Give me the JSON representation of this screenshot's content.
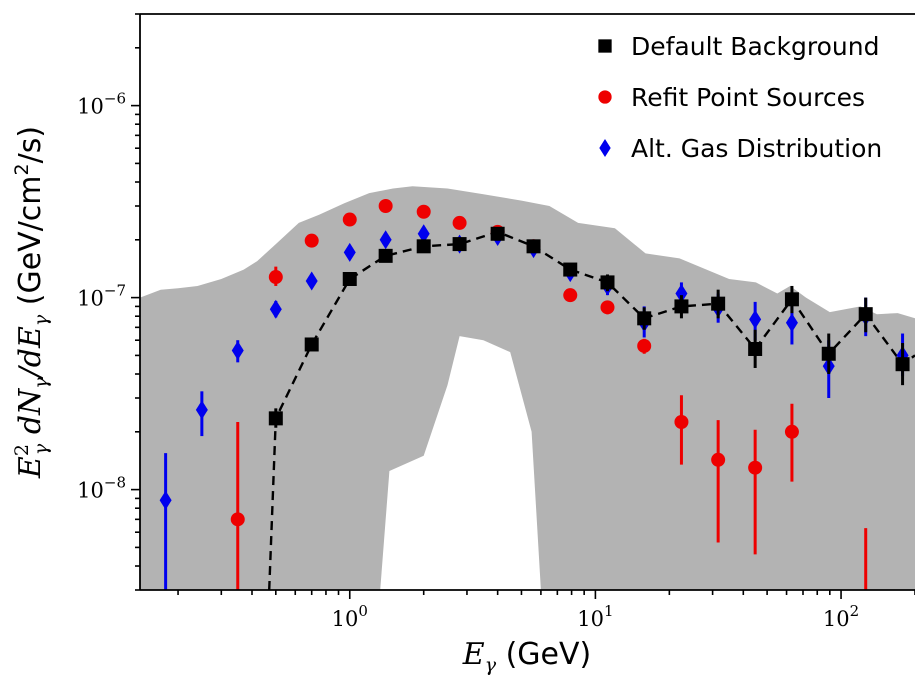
{
  "chart_data": {
    "type": "scatter",
    "xscale": "log",
    "yscale": "log",
    "xlim": [
      0.14,
      200
    ],
    "ylim": [
      3e-09,
      3e-06
    ],
    "xlabel": {
      "pre": "E",
      "sub": "γ",
      "post": " (GeV)"
    },
    "ylabel": {
      "lead": "E",
      "lead_sup": "2",
      "lead_sub": "γ",
      "mid": " dN",
      "mid_sub": "γ",
      "tail": "/dE",
      "tail_sub": "γ",
      "units_pre": " (GeV/cm",
      "units_sup": "2",
      "units_post": "/s)"
    },
    "x_ticks": [
      {
        "value": 1,
        "base": "10",
        "exp": "0"
      },
      {
        "value": 10,
        "base": "10",
        "exp": "1"
      },
      {
        "value": 100,
        "base": "10",
        "exp": "2"
      }
    ],
    "y_ticks": [
      {
        "value": 1e-08,
        "base": "10",
        "exp": "−8"
      },
      {
        "value": 1e-07,
        "base": "10",
        "exp": "−7"
      },
      {
        "value": 1e-06,
        "base": "10",
        "exp": "−6"
      }
    ],
    "legend_position": "top-right",
    "band": {
      "color": "#b3b3b3",
      "upper": [
        [
          0.14,
          1e-07
        ],
        [
          0.17,
          1.1e-07
        ],
        [
          0.2,
          1.12e-07
        ],
        [
          0.24,
          1.15e-07
        ],
        [
          0.3,
          1.25e-07
        ],
        [
          0.37,
          1.4e-07
        ],
        [
          0.42,
          1.55e-07
        ],
        [
          0.5,
          1.9e-07
        ],
        [
          0.62,
          2.45e-07
        ],
        [
          0.75,
          2.7e-07
        ],
        [
          0.95,
          3.1e-07
        ],
        [
          1.2,
          3.5e-07
        ],
        [
          1.5,
          3.7e-07
        ],
        [
          1.8,
          3.8e-07
        ],
        [
          2.5,
          3.7e-07
        ],
        [
          3.5,
          3.45e-07
        ],
        [
          5,
          3.2e-07
        ],
        [
          6.5,
          3e-07
        ],
        [
          8.5,
          2.45e-07
        ],
        [
          12,
          2.3e-07
        ],
        [
          16,
          1.7e-07
        ],
        [
          22,
          1.6e-07
        ],
        [
          35,
          1.25e-07
        ],
        [
          45,
          1.2e-07
        ],
        [
          55,
          1.05e-07
        ],
        [
          62,
          1.15e-07
        ],
        [
          72,
          1e-07
        ],
        [
          90,
          8.4e-08
        ],
        [
          120,
          9e-08
        ],
        [
          140,
          8.2e-08
        ],
        [
          170,
          8.3e-08
        ],
        [
          200,
          7.8e-08
        ]
      ],
      "hole": [
        [
          1.33,
          3e-09
        ],
        [
          1.45,
          1.25e-08
        ],
        [
          2.0,
          1.5e-08
        ],
        [
          2.5,
          3.5e-08
        ],
        [
          2.8,
          6.3e-08
        ],
        [
          3.5,
          6e-08
        ],
        [
          4.5,
          5.2e-08
        ],
        [
          5.5,
          2e-08
        ],
        [
          6.0,
          3e-09
        ]
      ]
    },
    "dashed_line": [
      [
        0.47,
        3e-09
      ],
      [
        0.5,
        2.35e-08
      ],
      [
        0.7,
        5.7e-08
      ],
      [
        1.0,
        1.25e-07
      ],
      [
        1.4,
        1.65e-07
      ],
      [
        2.0,
        1.85e-07
      ],
      [
        2.8,
        1.9e-07
      ],
      [
        4.0,
        2.2e-07
      ],
      [
        5.6,
        1.85e-07
      ],
      [
        7.9,
        1.4e-07
      ],
      [
        11.2,
        1.2e-07
      ],
      [
        15.8,
        7.8e-08
      ],
      [
        22.4,
        9e-08
      ],
      [
        31.6,
        9.3e-08
      ],
      [
        44.7,
        5.4e-08
      ],
      [
        63.1,
        9.8e-08
      ],
      [
        89.1,
        5.1e-08
      ],
      [
        126,
        8.2e-08
      ],
      [
        178,
        4.5e-08
      ],
      [
        200,
        5e-08
      ]
    ],
    "series": [
      {
        "name": "Default Background",
        "marker": "square",
        "color": "#000000",
        "points": [
          {
            "x": 0.5,
            "y": 2.35e-08,
            "lo": 2.1e-08,
            "hi": 2.65e-08
          },
          {
            "x": 0.7,
            "y": 5.7e-08,
            "lo": 5.3e-08,
            "hi": 6.2e-08
          },
          {
            "x": 1.0,
            "y": 1.25e-07,
            "lo": 1.18e-07,
            "hi": 1.32e-07
          },
          {
            "x": 1.4,
            "y": 1.65e-07,
            "lo": 1.58e-07,
            "hi": 1.72e-07
          },
          {
            "x": 2.0,
            "y": 1.85e-07,
            "lo": 1.78e-07,
            "hi": 1.92e-07
          },
          {
            "x": 2.8,
            "y": 1.9e-07,
            "lo": 1.82e-07,
            "hi": 1.98e-07
          },
          {
            "x": 4.0,
            "y": 2.15e-07,
            "lo": 2.06e-07,
            "hi": 2.25e-07
          },
          {
            "x": 5.6,
            "y": 1.85e-07,
            "lo": 1.75e-07,
            "hi": 1.95e-07
          },
          {
            "x": 7.9,
            "y": 1.4e-07,
            "lo": 1.3e-07,
            "hi": 1.5e-07
          },
          {
            "x": 11.2,
            "y": 1.2e-07,
            "lo": 1.08e-07,
            "hi": 1.32e-07
          },
          {
            "x": 15.8,
            "y": 7.8e-08,
            "lo": 6.8e-08,
            "hi": 8.9e-08
          },
          {
            "x": 22.4,
            "y": 9e-08,
            "lo": 7.8e-08,
            "hi": 1.03e-07
          },
          {
            "x": 31.6,
            "y": 9.3e-08,
            "lo": 7.8e-08,
            "hi": 1.1e-07
          },
          {
            "x": 44.7,
            "y": 5.4e-08,
            "lo": 4.3e-08,
            "hi": 6.8e-08
          },
          {
            "x": 63.1,
            "y": 9.8e-08,
            "lo": 8.3e-08,
            "hi": 1.15e-07
          },
          {
            "x": 89.1,
            "y": 5.1e-08,
            "lo": 4e-08,
            "hi": 6.5e-08
          },
          {
            "x": 126,
            "y": 8.2e-08,
            "lo": 6.6e-08,
            "hi": 1e-07
          },
          {
            "x": 178,
            "y": 4.5e-08,
            "lo": 3.5e-08,
            "hi": 5.8e-08
          }
        ]
      },
      {
        "name": "Refit Point Sources",
        "marker": "circle",
        "color": "#ee0000",
        "points": [
          {
            "x": 0.35,
            "y": 7e-09,
            "lo": 2.9e-09,
            "hi": 2.25e-08
          },
          {
            "x": 0.5,
            "y": 1.28e-07,
            "lo": 1.15e-07,
            "hi": 1.45e-07
          },
          {
            "x": 0.7,
            "y": 1.98e-07,
            "lo": 1.9e-07,
            "hi": 2.08e-07
          },
          {
            "x": 1.0,
            "y": 2.55e-07,
            "lo": 2.45e-07,
            "hi": 2.65e-07
          },
          {
            "x": 1.4,
            "y": 3e-07,
            "lo": 2.9e-07,
            "hi": 3.1e-07
          },
          {
            "x": 2.0,
            "y": 2.8e-07,
            "lo": 2.7e-07,
            "hi": 2.9e-07
          },
          {
            "x": 2.8,
            "y": 2.45e-07,
            "lo": 2.35e-07,
            "hi": 2.55e-07
          },
          {
            "x": 4.0,
            "y": 2.2e-07,
            "lo": 2.1e-07,
            "hi": 2.3e-07
          },
          {
            "x": 5.6,
            "y": 1.85e-07,
            "lo": 1.76e-07,
            "hi": 1.95e-07
          },
          {
            "x": 7.9,
            "y": 1.03e-07,
            "lo": 9.6e-08,
            "hi": 1.1e-07
          },
          {
            "x": 11.2,
            "y": 8.9e-08,
            "lo": 8.2e-08,
            "hi": 9.6e-08
          },
          {
            "x": 15.8,
            "y": 5.6e-08,
            "lo": 5.1e-08,
            "hi": 6.1e-08
          },
          {
            "x": 22.4,
            "y": 2.25e-08,
            "lo": 1.35e-08,
            "hi": 3.1e-08
          },
          {
            "x": 31.6,
            "y": 1.43e-08,
            "lo": 5.3e-09,
            "hi": 2.3e-08
          },
          {
            "x": 44.7,
            "y": 1.3e-08,
            "lo": 4.6e-09,
            "hi": 2.05e-08
          },
          {
            "x": 63.1,
            "y": 2e-08,
            "lo": 1.1e-08,
            "hi": 2.8e-08
          },
          {
            "x": 126,
            "y": null,
            "lo": 3e-09,
            "hi": 6.3e-09
          }
        ]
      },
      {
        "name": "Alt. Gas Distribution",
        "marker": "diamond",
        "color": "#0000ee",
        "points": [
          {
            "x": 0.178,
            "y": 8.8e-09,
            "lo": 3e-09,
            "hi": 1.55e-08
          },
          {
            "x": 0.25,
            "y": 2.6e-08,
            "lo": 1.9e-08,
            "hi": 3.25e-08
          },
          {
            "x": 0.35,
            "y": 5.3e-08,
            "lo": 4.6e-08,
            "hi": 6e-08
          },
          {
            "x": 0.5,
            "y": 8.7e-08,
            "lo": 7.9e-08,
            "hi": 9.6e-08
          },
          {
            "x": 0.7,
            "y": 1.22e-07,
            "lo": 1.13e-07,
            "hi": 1.3e-07
          },
          {
            "x": 1.0,
            "y": 1.72e-07,
            "lo": 1.62e-07,
            "hi": 1.82e-07
          },
          {
            "x": 1.4,
            "y": 2e-07,
            "lo": 1.9e-07,
            "hi": 2.1e-07
          },
          {
            "x": 2.0,
            "y": 2.15e-07,
            "lo": 2.05e-07,
            "hi": 2.25e-07
          },
          {
            "x": 2.8,
            "y": 1.9e-07,
            "lo": 1.8e-07,
            "hi": 2e-07
          },
          {
            "x": 4.0,
            "y": 2.08e-07,
            "lo": 1.98e-07,
            "hi": 2.18e-07
          },
          {
            "x": 5.6,
            "y": 1.8e-07,
            "lo": 1.7e-07,
            "hi": 1.9e-07
          },
          {
            "x": 7.9,
            "y": 1.35e-07,
            "lo": 1.25e-07,
            "hi": 1.45e-07
          },
          {
            "x": 11.2,
            "y": 1.15e-07,
            "lo": 1.03e-07,
            "hi": 1.28e-07
          },
          {
            "x": 15.8,
            "y": 7.4e-08,
            "lo": 6.2e-08,
            "hi": 9e-08
          },
          {
            "x": 22.4,
            "y": 1.05e-07,
            "lo": 9e-08,
            "hi": 1.2e-07
          },
          {
            "x": 31.6,
            "y": 8.8e-08,
            "lo": 7.4e-08,
            "hi": 1.05e-07
          },
          {
            "x": 44.7,
            "y": 7.7e-08,
            "lo": 6e-08,
            "hi": 9.5e-08
          },
          {
            "x": 63.1,
            "y": 7.4e-08,
            "lo": 5.7e-08,
            "hi": 9.5e-08
          },
          {
            "x": 89.1,
            "y": 4.4e-08,
            "lo": 3e-08,
            "hi": 6e-08
          },
          {
            "x": 126,
            "y": 8e-08,
            "lo": 6.3e-08,
            "hi": 1e-07
          },
          {
            "x": 178,
            "y": 5e-08,
            "lo": 3.9e-08,
            "hi": 6.5e-08
          }
        ]
      }
    ]
  }
}
